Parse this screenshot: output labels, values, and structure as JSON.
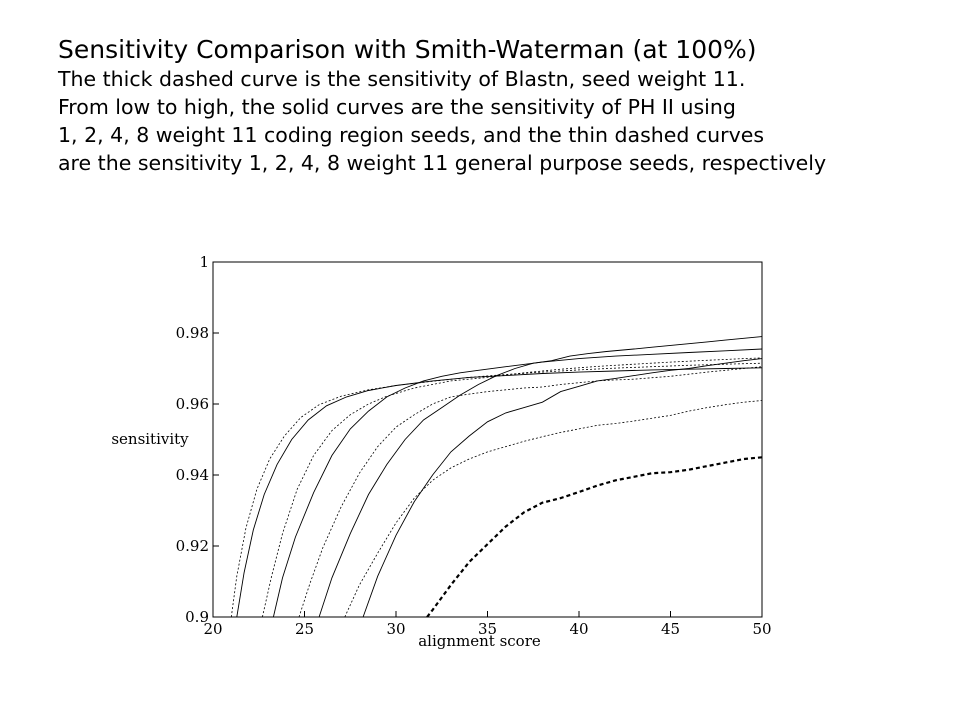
{
  "title": "Sensitivity Comparison with Smith-Waterman (at 100%)",
  "subtitle_lines": [
    "The thick dashed curve is the sensitivity of Blastn, seed weight 11.",
    "From low to high, the solid curves are the sensitivity of PH II using",
    "1, 2, 4, 8 weight 11 coding region seeds, and the thin dashed curves",
    "are the sensitivity 1, 2, 4, 8 weight 11 general purpose seeds, respectively"
  ],
  "chart_data": {
    "type": "line",
    "title": "Sensitivity Comparison with Smith-Waterman (at 100%)",
    "xlabel": "alignment score",
    "ylabel": "sensitivity",
    "xlim": [
      20,
      50
    ],
    "ylim": [
      0.9,
      1.0
    ],
    "x_ticks": [
      "20",
      "25",
      "30",
      "35",
      "40",
      "45",
      "50"
    ],
    "y_ticks": [
      "0.9",
      "0.92",
      "0.94",
      "0.96",
      "0.98",
      "1"
    ],
    "grid": false,
    "series": [
      {
        "style": "thick-dashed",
        "points": [
          [
            31.7,
            0.9
          ],
          [
            32,
            0.902
          ],
          [
            33,
            0.909
          ],
          [
            34,
            0.9155
          ],
          [
            35,
            0.9205
          ],
          [
            36,
            0.9255
          ],
          [
            37,
            0.9295
          ],
          [
            38,
            0.9322
          ],
          [
            39,
            0.9335
          ],
          [
            40,
            0.9352
          ],
          [
            41,
            0.937
          ],
          [
            42,
            0.9385
          ],
          [
            43,
            0.9395
          ],
          [
            44,
            0.9405
          ],
          [
            45,
            0.9408
          ],
          [
            46,
            0.9415
          ],
          [
            47,
            0.9425
          ],
          [
            48,
            0.9435
          ],
          [
            49,
            0.9445
          ],
          [
            50,
            0.945
          ]
        ]
      },
      {
        "style": "solid",
        "points": [
          [
            28.2,
            0.9
          ],
          [
            29,
            0.9115
          ],
          [
            30,
            0.923
          ],
          [
            31,
            0.9325
          ],
          [
            32,
            0.94
          ],
          [
            33,
            0.9465
          ],
          [
            34,
            0.951
          ],
          [
            35,
            0.955
          ],
          [
            36,
            0.9575
          ],
          [
            37,
            0.959
          ],
          [
            38,
            0.9605
          ],
          [
            39,
            0.9635
          ],
          [
            40,
            0.965
          ],
          [
            41,
            0.9665
          ],
          [
            42,
            0.9672
          ],
          [
            43,
            0.968
          ],
          [
            44,
            0.9688
          ],
          [
            45,
            0.9695
          ],
          [
            46,
            0.97
          ],
          [
            47,
            0.9708
          ],
          [
            48,
            0.9715
          ],
          [
            49,
            0.9722
          ],
          [
            50,
            0.9728
          ]
        ]
      },
      {
        "style": "solid",
        "points": [
          [
            25.8,
            0.9
          ],
          [
            26.5,
            0.911
          ],
          [
            27.5,
            0.9235
          ],
          [
            28.5,
            0.9345
          ],
          [
            29.5,
            0.943
          ],
          [
            30.5,
            0.95
          ],
          [
            31.5,
            0.9555
          ],
          [
            32.5,
            0.959
          ],
          [
            33.5,
            0.9625
          ],
          [
            34.5,
            0.9655
          ],
          [
            35.5,
            0.968
          ],
          [
            36.5,
            0.97
          ],
          [
            37.5,
            0.9715
          ],
          [
            38.5,
            0.9722
          ],
          [
            39.5,
            0.9735
          ],
          [
            40.5,
            0.9742
          ],
          [
            41.5,
            0.9748
          ],
          [
            43,
            0.9755
          ],
          [
            44,
            0.976
          ],
          [
            45,
            0.9765
          ],
          [
            46,
            0.977
          ],
          [
            47,
            0.9775
          ],
          [
            48,
            0.978
          ],
          [
            49,
            0.9785
          ],
          [
            50,
            0.979
          ]
        ]
      },
      {
        "style": "solid",
        "points": [
          [
            23.3,
            0.9
          ],
          [
            23.8,
            0.911
          ],
          [
            24.5,
            0.9225
          ],
          [
            25.5,
            0.935
          ],
          [
            26.5,
            0.9455
          ],
          [
            27.5,
            0.953
          ],
          [
            28.5,
            0.958
          ],
          [
            29.5,
            0.962
          ],
          [
            30.5,
            0.9645
          ],
          [
            31.5,
            0.9665
          ],
          [
            32.5,
            0.9678
          ],
          [
            33.5,
            0.9688
          ],
          [
            34.5,
            0.9695
          ],
          [
            36,
            0.9705
          ],
          [
            38,
            0.9718
          ],
          [
            40,
            0.9728
          ],
          [
            42,
            0.9735
          ],
          [
            44,
            0.974
          ],
          [
            46,
            0.9745
          ],
          [
            48,
            0.975
          ],
          [
            50,
            0.9755
          ]
        ]
      },
      {
        "style": "solid",
        "points": [
          [
            21.3,
            0.9
          ],
          [
            21.7,
            0.9125
          ],
          [
            22.2,
            0.9245
          ],
          [
            22.8,
            0.9345
          ],
          [
            23.5,
            0.943
          ],
          [
            24.3,
            0.95
          ],
          [
            25.2,
            0.9555
          ],
          [
            26.2,
            0.9595
          ],
          [
            27.3,
            0.962
          ],
          [
            28.5,
            0.9638
          ],
          [
            30,
            0.9652
          ],
          [
            32,
            0.9665
          ],
          [
            34,
            0.9675
          ],
          [
            36,
            0.968
          ],
          [
            38,
            0.9686
          ],
          [
            40,
            0.969
          ],
          [
            42,
            0.9693
          ],
          [
            44,
            0.9696
          ],
          [
            46,
            0.9698
          ],
          [
            48,
            0.97
          ],
          [
            50,
            0.9702
          ]
        ]
      },
      {
        "style": "thin-dashed",
        "points": [
          [
            27.2,
            0.9
          ],
          [
            28,
            0.909
          ],
          [
            29,
            0.918
          ],
          [
            30,
            0.9265
          ],
          [
            31,
            0.9335
          ],
          [
            32,
            0.9385
          ],
          [
            33,
            0.942
          ],
          [
            34,
            0.9445
          ],
          [
            35,
            0.9465
          ],
          [
            36,
            0.948
          ],
          [
            37,
            0.9495
          ],
          [
            38,
            0.9508
          ],
          [
            39,
            0.952
          ],
          [
            40,
            0.953
          ],
          [
            41,
            0.954
          ],
          [
            42,
            0.9545
          ],
          [
            43,
            0.9552
          ],
          [
            44,
            0.956
          ],
          [
            45,
            0.9568
          ],
          [
            46,
            0.958
          ],
          [
            47,
            0.959
          ],
          [
            48,
            0.9598
          ],
          [
            49,
            0.9605
          ],
          [
            50,
            0.961
          ]
        ]
      },
      {
        "style": "thin-dashed",
        "points": [
          [
            24.7,
            0.9
          ],
          [
            25.3,
            0.9095
          ],
          [
            26,
            0.9195
          ],
          [
            27,
            0.931
          ],
          [
            28,
            0.9405
          ],
          [
            29,
            0.948
          ],
          [
            30,
            0.9535
          ],
          [
            31,
            0.957
          ],
          [
            32,
            0.96
          ],
          [
            33,
            0.962
          ],
          [
            34,
            0.9628
          ],
          [
            35,
            0.9635
          ],
          [
            36,
            0.964
          ],
          [
            37,
            0.9645
          ],
          [
            38,
            0.9648
          ],
          [
            39,
            0.9655
          ],
          [
            40,
            0.966
          ],
          [
            41,
            0.9665
          ],
          [
            42,
            0.9668
          ],
          [
            43,
            0.967
          ],
          [
            44,
            0.9674
          ],
          [
            45,
            0.9678
          ],
          [
            46,
            0.9684
          ],
          [
            47,
            0.969
          ],
          [
            48,
            0.9695
          ],
          [
            49,
            0.97
          ],
          [
            50,
            0.9705
          ]
        ]
      },
      {
        "style": "thin-dashed",
        "points": [
          [
            22.7,
            0.9
          ],
          [
            23.2,
            0.9115
          ],
          [
            23.8,
            0.9235
          ],
          [
            24.6,
            0.936
          ],
          [
            25.5,
            0.9455
          ],
          [
            26.5,
            0.9525
          ],
          [
            27.5,
            0.957
          ],
          [
            28.5,
            0.96
          ],
          [
            29.5,
            0.9622
          ],
          [
            31,
            0.9645
          ],
          [
            33,
            0.9665
          ],
          [
            35,
            0.9675
          ],
          [
            37,
            0.9688
          ],
          [
            39,
            0.9698
          ],
          [
            41,
            0.9706
          ],
          [
            43,
            0.9712
          ],
          [
            45,
            0.9718
          ],
          [
            47,
            0.9723
          ],
          [
            49,
            0.9728
          ],
          [
            50,
            0.973
          ]
        ]
      },
      {
        "style": "thin-dashed",
        "points": [
          [
            21,
            0.9
          ],
          [
            21.3,
            0.9115
          ],
          [
            21.8,
            0.925
          ],
          [
            22.4,
            0.936
          ],
          [
            23.1,
            0.9445
          ],
          [
            23.9,
            0.951
          ],
          [
            24.8,
            0.9562
          ],
          [
            25.8,
            0.9598
          ],
          [
            27,
            0.9622
          ],
          [
            28.5,
            0.964
          ],
          [
            30,
            0.9652
          ],
          [
            32,
            0.9664
          ],
          [
            34,
            0.9675
          ],
          [
            36,
            0.9683
          ],
          [
            38,
            0.969
          ],
          [
            40,
            0.9696
          ],
          [
            42,
            0.9701
          ],
          [
            44,
            0.9705
          ],
          [
            46,
            0.9709
          ],
          [
            48,
            0.9712
          ],
          [
            50,
            0.9715
          ]
        ]
      }
    ]
  }
}
